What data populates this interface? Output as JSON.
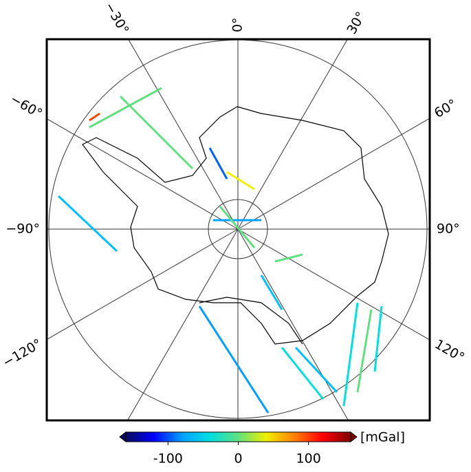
{
  "map": {
    "meridian_labels": [
      {
        "value": -120,
        "label": "−120°"
      },
      {
        "value": -90,
        "label": "−90°"
      },
      {
        "value": -60,
        "label": "−60°"
      },
      {
        "value": -30,
        "label": "−30°"
      },
      {
        "value": 0,
        "label": "0°"
      },
      {
        "value": 30,
        "label": "30°"
      },
      {
        "value": 60,
        "label": "60°"
      },
      {
        "value": 90,
        "label": "90°"
      },
      {
        "value": 120,
        "label": "120°"
      }
    ],
    "colorbar": {
      "label": "[mGal]",
      "range": [
        -160,
        160
      ],
      "ticks": [
        -100,
        0,
        100
      ],
      "colors": [
        "#0a0a5a",
        "#0000ff",
        "#00a0ff",
        "#00e0e0",
        "#60e080",
        "#f0f000",
        "#ff8000",
        "#ff0000",
        "#800000"
      ]
    }
  }
}
